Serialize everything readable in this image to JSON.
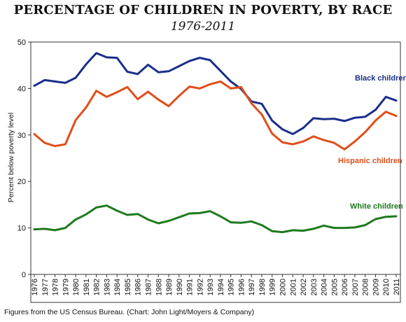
{
  "chart_data": {
    "type": "line",
    "title": "PERCENTAGE OF CHILDREN IN POVERTY, BY RACE",
    "subtitle": "1976-2011",
    "ylabel": "Percent below poverty level",
    "xlabel": "",
    "ylim": [
      0,
      50
    ],
    "yticks": [
      0,
      10,
      20,
      30,
      40,
      50
    ],
    "grid": false,
    "legend": "inline-labels",
    "x": [
      "1976",
      "1977",
      "1978",
      "1979",
      "1980",
      "1981",
      "1982",
      "1983",
      "1984",
      "1985",
      "1986",
      "1987",
      "1988",
      "1989",
      "1990",
      "1991",
      "1992",
      "1993",
      "1994",
      "1995",
      "1996",
      "1997",
      "1998",
      "1999",
      "2000",
      "2001",
      "2002",
      "2003",
      "2004",
      "2005",
      "2006",
      "2007",
      "2008",
      "2009",
      "2010",
      "2011"
    ],
    "series": [
      {
        "name": "Black children",
        "color": "#1a2f8a",
        "values": [
          40.6,
          41.8,
          41.5,
          41.2,
          42.3,
          45.2,
          47.6,
          46.7,
          46.6,
          43.6,
          43.1,
          45.1,
          43.5,
          43.7,
          44.8,
          45.9,
          46.6,
          46.1,
          43.8,
          41.5,
          39.9,
          37.2,
          36.7,
          33.1,
          31.2,
          30.2,
          31.5,
          33.6,
          33.4,
          33.5,
          33.0,
          33.7,
          33.9,
          35.4,
          38.2,
          37.4
        ]
      },
      {
        "name": "Hispanic children",
        "color": "#e04e1a",
        "values": [
          30.2,
          28.3,
          27.6,
          28.0,
          33.2,
          35.9,
          39.5,
          38.2,
          39.2,
          40.3,
          37.7,
          39.3,
          37.6,
          36.2,
          38.4,
          40.4,
          40.0,
          40.9,
          41.5,
          40.0,
          40.3,
          36.8,
          34.4,
          30.3,
          28.4,
          28.0,
          28.6,
          29.7,
          28.9,
          28.3,
          26.9,
          28.6,
          30.6,
          33.1,
          35.0,
          34.1
        ]
      },
      {
        "name": "White children",
        "color": "#1e7a1e",
        "values": [
          9.7,
          9.8,
          9.5,
          10.0,
          11.8,
          12.9,
          14.4,
          14.8,
          13.7,
          12.8,
          13.0,
          11.8,
          11.0,
          11.5,
          12.3,
          13.1,
          13.2,
          13.6,
          12.5,
          11.2,
          11.1,
          11.4,
          10.6,
          9.3,
          9.1,
          9.5,
          9.4,
          9.8,
          10.5,
          10.0,
          10.0,
          10.1,
          10.6,
          11.9,
          12.4,
          12.5
        ]
      }
    ]
  },
  "source_note": "Figures from the US Census Bureau. (Chart: John Light/Moyers & Company)"
}
